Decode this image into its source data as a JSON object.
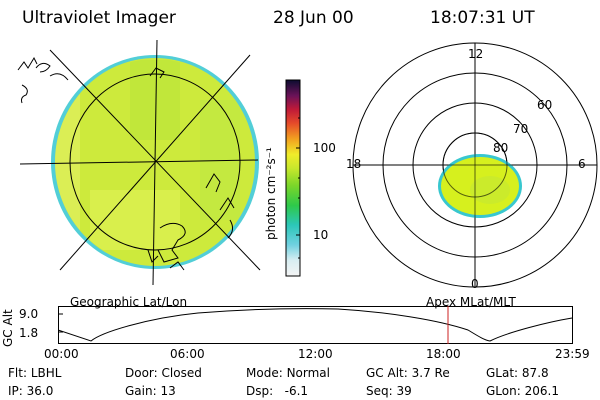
{
  "header": {
    "instrument": "Ultraviolet Imager",
    "date": "28 Jun 00",
    "time": "18:07:31 UT"
  },
  "colorbar": {
    "unit_label": "photon cm⁻²s⁻¹",
    "tick_labels": [
      "100",
      "10"
    ],
    "scale": "log"
  },
  "polar_plot": {
    "clock_labels": [
      "12",
      "18",
      "6",
      "0"
    ],
    "lat_labels": [
      "60",
      "70",
      "80"
    ]
  },
  "panels": {
    "left_caption": "Geographic Lat/Lon",
    "right_caption": "Apex  MLat/MLT"
  },
  "orbit_plot": {
    "y_axis_label": "GC Alt",
    "y_ticks": [
      "9.0",
      "1.8"
    ],
    "x_ticks": [
      "00:00",
      "06:00",
      "12:00",
      "18:00",
      "23:59"
    ],
    "marker_time": "18:07:31"
  },
  "footer": {
    "row1": [
      {
        "label": "Flt:",
        "value": "LBHL"
      },
      {
        "label": "Door:",
        "value": "Closed"
      },
      {
        "label": "Mode:",
        "value": "Normal"
      },
      {
        "label": "GC Alt:",
        "value": "3.7 Re"
      },
      {
        "label": "GLat:",
        "value": "87.8"
      }
    ],
    "row2": [
      {
        "label": "IP:",
        "value": "36.0"
      },
      {
        "label": "Gain:",
        "value": "13"
      },
      {
        "label": "Dsp:",
        "value": "-6.1"
      },
      {
        "label": "Seq:",
        "value": "39"
      },
      {
        "label": "GLon:",
        "value": "206.1"
      }
    ]
  },
  "colors": {
    "disk_fill": "#c8ec3a",
    "disk_edge": "#34c3d6",
    "oval_fill": "#d6f01e",
    "marker": "#cc2222"
  }
}
